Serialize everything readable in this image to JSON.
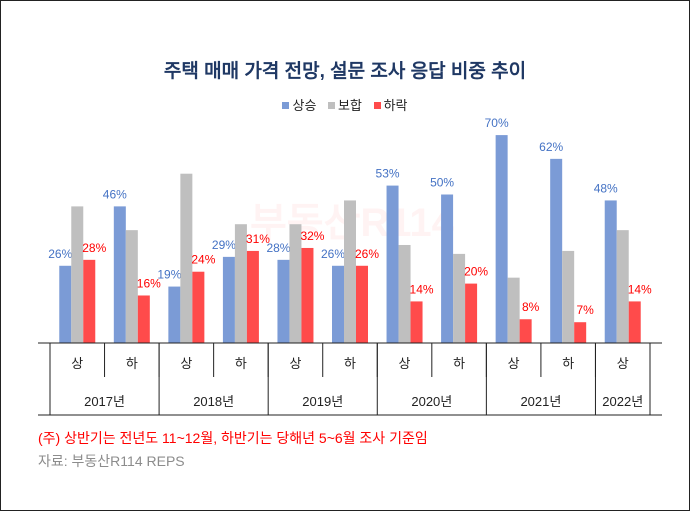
{
  "chart_data": {
    "type": "bar",
    "title": "주택 매매 가격 전망, 설문 조사 응답 비중 추이",
    "categories": [
      "상",
      "하",
      "상",
      "하",
      "상",
      "하",
      "상",
      "하",
      "상",
      "하",
      "상"
    ],
    "years": [
      "2017년",
      "2018년",
      "2019년",
      "2020년",
      "2021년",
      "2022년"
    ],
    "year_spans": [
      2,
      2,
      2,
      2,
      2,
      1
    ],
    "series": [
      {
        "name": "상승",
        "color": "#7b9bd6",
        "label_color": "#4472c4",
        "values": [
          26,
          46,
          19,
          29,
          28,
          26,
          53,
          50,
          70,
          62,
          48
        ],
        "labels": true
      },
      {
        "name": "보합",
        "color": "#bfbfbf",
        "values": [
          46,
          38,
          57,
          40,
          40,
          48,
          33,
          30,
          22,
          31,
          38
        ],
        "labels": false
      },
      {
        "name": "하락",
        "color": "#ff4b4b",
        "label_color": "#ff0000",
        "values": [
          28,
          16,
          24,
          31,
          32,
          26,
          14,
          20,
          8,
          7,
          14
        ],
        "labels": true
      }
    ],
    "ylim": [
      0,
      100
    ],
    "legend_position": "top",
    "grid": false
  },
  "note": "(주) 상반기는 전년도 11~12월, 하반기는 당해년 5~6월 조사 기준임",
  "source": "자료: 부동산R114 REPS",
  "watermark": "부동산R114"
}
